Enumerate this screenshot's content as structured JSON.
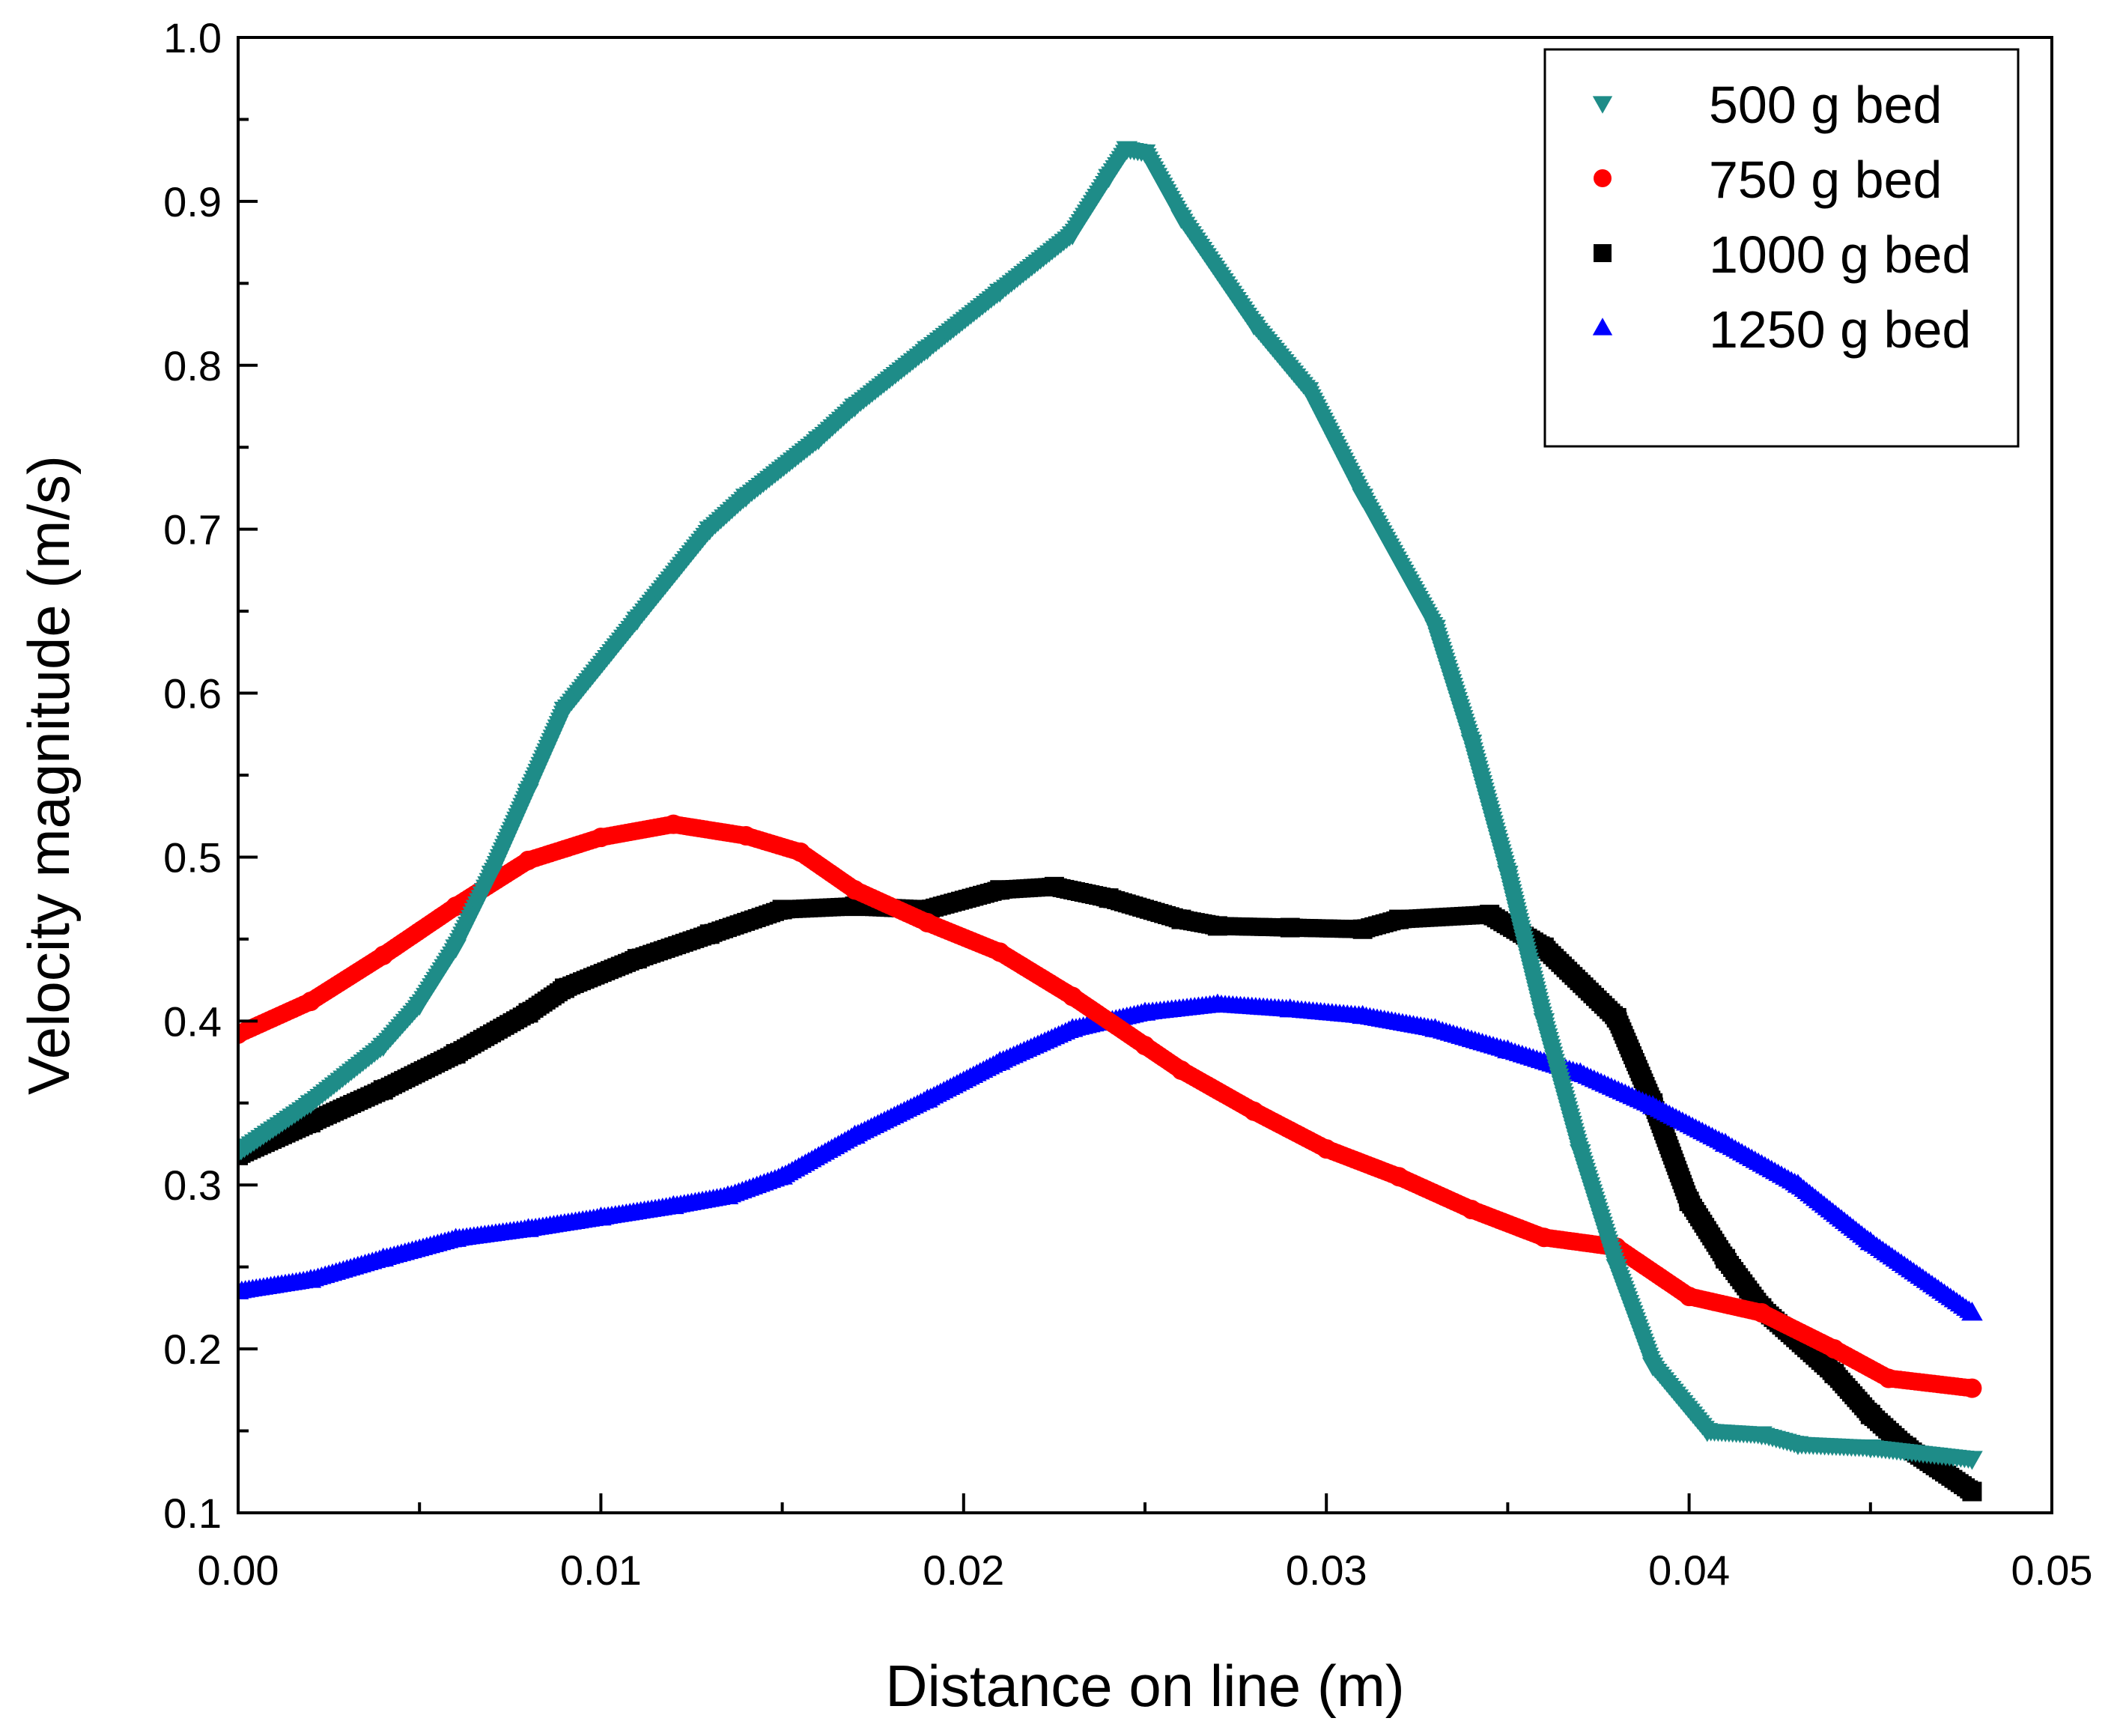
{
  "chart_data": {
    "type": "scatter",
    "title": "",
    "xlabel": "Distance on line (m)",
    "ylabel": "Velocity magnitude (m/s)",
    "xlim": [
      0.0,
      0.05
    ],
    "ylim": [
      0.1,
      1.0
    ],
    "xticks": [
      "0.00",
      "0.01",
      "0.02",
      "0.03",
      "0.04",
      "0.05"
    ],
    "yticks": [
      "0.1",
      "0.2",
      "0.3",
      "0.4",
      "0.5",
      "0.6",
      "0.7",
      "0.8",
      "0.9",
      "1.0"
    ],
    "grid": false,
    "legend_position": "top-right",
    "series": [
      {
        "name": "500 g bed",
        "marker": "triangle-down",
        "color": "#1e8c88",
        "points": [
          [
            0.0,
            0.32
          ],
          [
            0.002,
            0.35
          ],
          [
            0.004,
            0.385
          ],
          [
            0.005,
            0.41
          ],
          [
            0.006,
            0.445
          ],
          [
            0.007,
            0.49
          ],
          [
            0.008,
            0.54
          ],
          [
            0.009,
            0.59
          ],
          [
            0.011,
            0.645
          ],
          [
            0.013,
            0.7
          ],
          [
            0.014,
            0.72
          ],
          [
            0.016,
            0.755
          ],
          [
            0.017,
            0.775
          ],
          [
            0.019,
            0.81
          ],
          [
            0.021,
            0.845
          ],
          [
            0.023,
            0.88
          ],
          [
            0.024,
            0.915
          ],
          [
            0.0245,
            0.932
          ],
          [
            0.025,
            0.93
          ],
          [
            0.026,
            0.89
          ],
          [
            0.028,
            0.825
          ],
          [
            0.0295,
            0.785
          ],
          [
            0.031,
            0.72
          ],
          [
            0.033,
            0.64
          ],
          [
            0.034,
            0.57
          ],
          [
            0.035,
            0.49
          ],
          [
            0.036,
            0.4
          ],
          [
            0.037,
            0.32
          ],
          [
            0.038,
            0.25
          ],
          [
            0.039,
            0.19
          ],
          [
            0.0405,
            0.15
          ],
          [
            0.042,
            0.148
          ],
          [
            0.043,
            0.142
          ],
          [
            0.045,
            0.14
          ],
          [
            0.0478,
            0.133
          ]
        ]
      },
      {
        "name": "750 g bed",
        "marker": "circle",
        "color": "#ff0000",
        "points": [
          [
            0.0,
            0.392
          ],
          [
            0.002,
            0.412
          ],
          [
            0.004,
            0.44
          ],
          [
            0.006,
            0.47
          ],
          [
            0.008,
            0.498
          ],
          [
            0.01,
            0.512
          ],
          [
            0.012,
            0.52
          ],
          [
            0.014,
            0.513
          ],
          [
            0.0155,
            0.503
          ],
          [
            0.017,
            0.48
          ],
          [
            0.019,
            0.46
          ],
          [
            0.021,
            0.442
          ],
          [
            0.023,
            0.415
          ],
          [
            0.025,
            0.385
          ],
          [
            0.026,
            0.37
          ],
          [
            0.028,
            0.345
          ],
          [
            0.03,
            0.322
          ],
          [
            0.032,
            0.305
          ],
          [
            0.034,
            0.285
          ],
          [
            0.036,
            0.268
          ],
          [
            0.038,
            0.262
          ],
          [
            0.04,
            0.232
          ],
          [
            0.042,
            0.222
          ],
          [
            0.044,
            0.2
          ],
          [
            0.0455,
            0.182
          ],
          [
            0.0478,
            0.176
          ]
        ]
      },
      {
        "name": "1000 g bed",
        "marker": "square",
        "color": "#000000",
        "points": [
          [
            0.0,
            0.318
          ],
          [
            0.002,
            0.338
          ],
          [
            0.004,
            0.358
          ],
          [
            0.006,
            0.38
          ],
          [
            0.008,
            0.405
          ],
          [
            0.009,
            0.42
          ],
          [
            0.011,
            0.438
          ],
          [
            0.013,
            0.453
          ],
          [
            0.015,
            0.468
          ],
          [
            0.017,
            0.47
          ],
          [
            0.019,
            0.468
          ],
          [
            0.021,
            0.48
          ],
          [
            0.0225,
            0.482
          ],
          [
            0.024,
            0.475
          ],
          [
            0.026,
            0.462
          ],
          [
            0.027,
            0.458
          ],
          [
            0.029,
            0.457
          ],
          [
            0.031,
            0.456
          ],
          [
            0.032,
            0.462
          ],
          [
            0.0345,
            0.465
          ],
          [
            0.036,
            0.445
          ],
          [
            0.038,
            0.402
          ],
          [
            0.039,
            0.35
          ],
          [
            0.04,
            0.29
          ],
          [
            0.041,
            0.255
          ],
          [
            0.042,
            0.225
          ],
          [
            0.044,
            0.185
          ],
          [
            0.045,
            0.16
          ],
          [
            0.046,
            0.14
          ],
          [
            0.0478,
            0.113
          ]
        ]
      },
      {
        "name": "1250 g bed",
        "marker": "triangle-up",
        "color": "#0000ff",
        "points": [
          [
            0.0,
            0.235
          ],
          [
            0.002,
            0.242
          ],
          [
            0.004,
            0.255
          ],
          [
            0.006,
            0.267
          ],
          [
            0.008,
            0.273
          ],
          [
            0.01,
            0.28
          ],
          [
            0.012,
            0.287
          ],
          [
            0.0135,
            0.293
          ],
          [
            0.015,
            0.305
          ],
          [
            0.017,
            0.33
          ],
          [
            0.019,
            0.352
          ],
          [
            0.021,
            0.375
          ],
          [
            0.023,
            0.395
          ],
          [
            0.025,
            0.405
          ],
          [
            0.027,
            0.41
          ],
          [
            0.029,
            0.407
          ],
          [
            0.031,
            0.403
          ],
          [
            0.033,
            0.395
          ],
          [
            0.035,
            0.382
          ],
          [
            0.037,
            0.368
          ],
          [
            0.039,
            0.348
          ],
          [
            0.041,
            0.325
          ],
          [
            0.043,
            0.3
          ],
          [
            0.045,
            0.265
          ],
          [
            0.0478,
            0.222
          ]
        ]
      }
    ]
  }
}
